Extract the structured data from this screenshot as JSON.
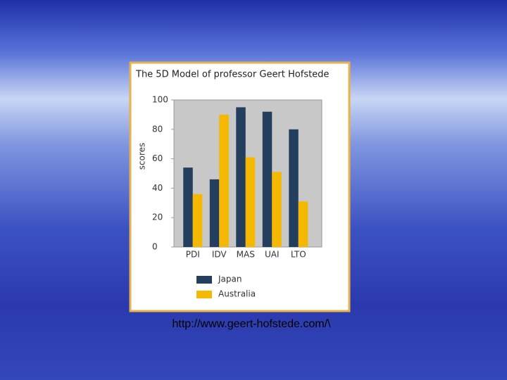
{
  "chart_data": {
    "type": "bar",
    "title": "The 5D Model of professor Geert Hofstede",
    "y_label": "scores",
    "categories": [
      "PDI",
      "IDV",
      "MAS",
      "UAI",
      "LTO"
    ],
    "series": [
      {
        "name": "Japan",
        "color": "#243f5e",
        "values": [
          54,
          46,
          95,
          92,
          80
        ]
      },
      {
        "name": "Australia",
        "color": "#f5b800",
        "values": [
          36,
          90,
          61,
          51,
          31
        ]
      }
    ],
    "ylim": [
      0,
      100
    ],
    "yticks": [
      0,
      20,
      40,
      60,
      80,
      100
    ]
  },
  "footer": {
    "url": "http://www.geert-hofstede.com/\\"
  }
}
